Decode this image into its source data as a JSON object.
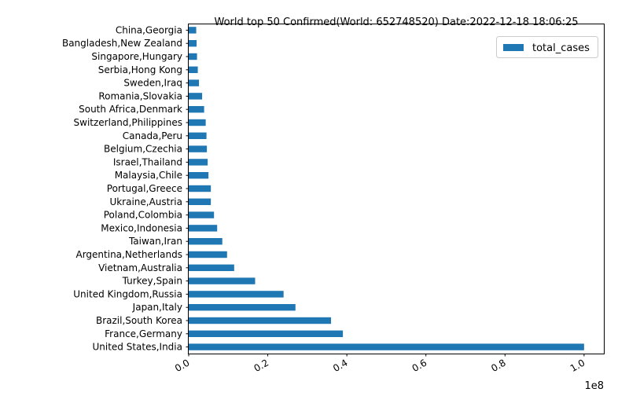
{
  "chart_data": {
    "type": "bar",
    "orientation": "horizontal",
    "title": "World top 50 Confirmed(World: 652748520) Date:2022-12-18 18:06:25",
    "xlabel": "",
    "ylabel": "",
    "x_offset_label": "1e8",
    "xlim": [
      0,
      1.05
    ],
    "xticks": [
      "0.0",
      "0.2",
      "0.4",
      "0.6",
      "0.8",
      "1.0"
    ],
    "xtick_values": [
      0.0,
      0.2,
      0.4,
      0.6,
      0.8,
      1.0
    ],
    "grid": false,
    "legend_position": "top-right",
    "categories": [
      "United States,India",
      "France,Germany",
      "Brazil,South Korea",
      "Japan,Italy",
      "United Kingdom,Russia",
      "Turkey,Spain",
      "Vietnam,Australia",
      "Argentina,Netherlands",
      "Taiwan,Iran",
      "Mexico,Indonesia",
      "Poland,Colombia",
      "Ukraine,Austria",
      "Portugal,Greece",
      "Malaysia,Chile",
      "Israel,Thailand",
      "Belgium,Czechia",
      "Canada,Peru",
      "Switzerland,Philippines",
      "South Africa,Denmark",
      "Romania,Slovakia",
      "Sweden,Iraq",
      "Serbia,Hong Kong",
      "Singapore,Hungary",
      "Bangladesh,New Zealand",
      "China,Georgia"
    ],
    "series": [
      {
        "name": "total_cases",
        "color": "#1f77b4",
        "values": [
          1.0,
          0.39,
          0.36,
          0.27,
          0.24,
          0.168,
          0.115,
          0.097,
          0.085,
          0.072,
          0.064,
          0.056,
          0.056,
          0.05,
          0.048,
          0.046,
          0.045,
          0.043,
          0.039,
          0.034,
          0.026,
          0.023,
          0.021,
          0.02,
          0.019
        ]
      }
    ]
  }
}
